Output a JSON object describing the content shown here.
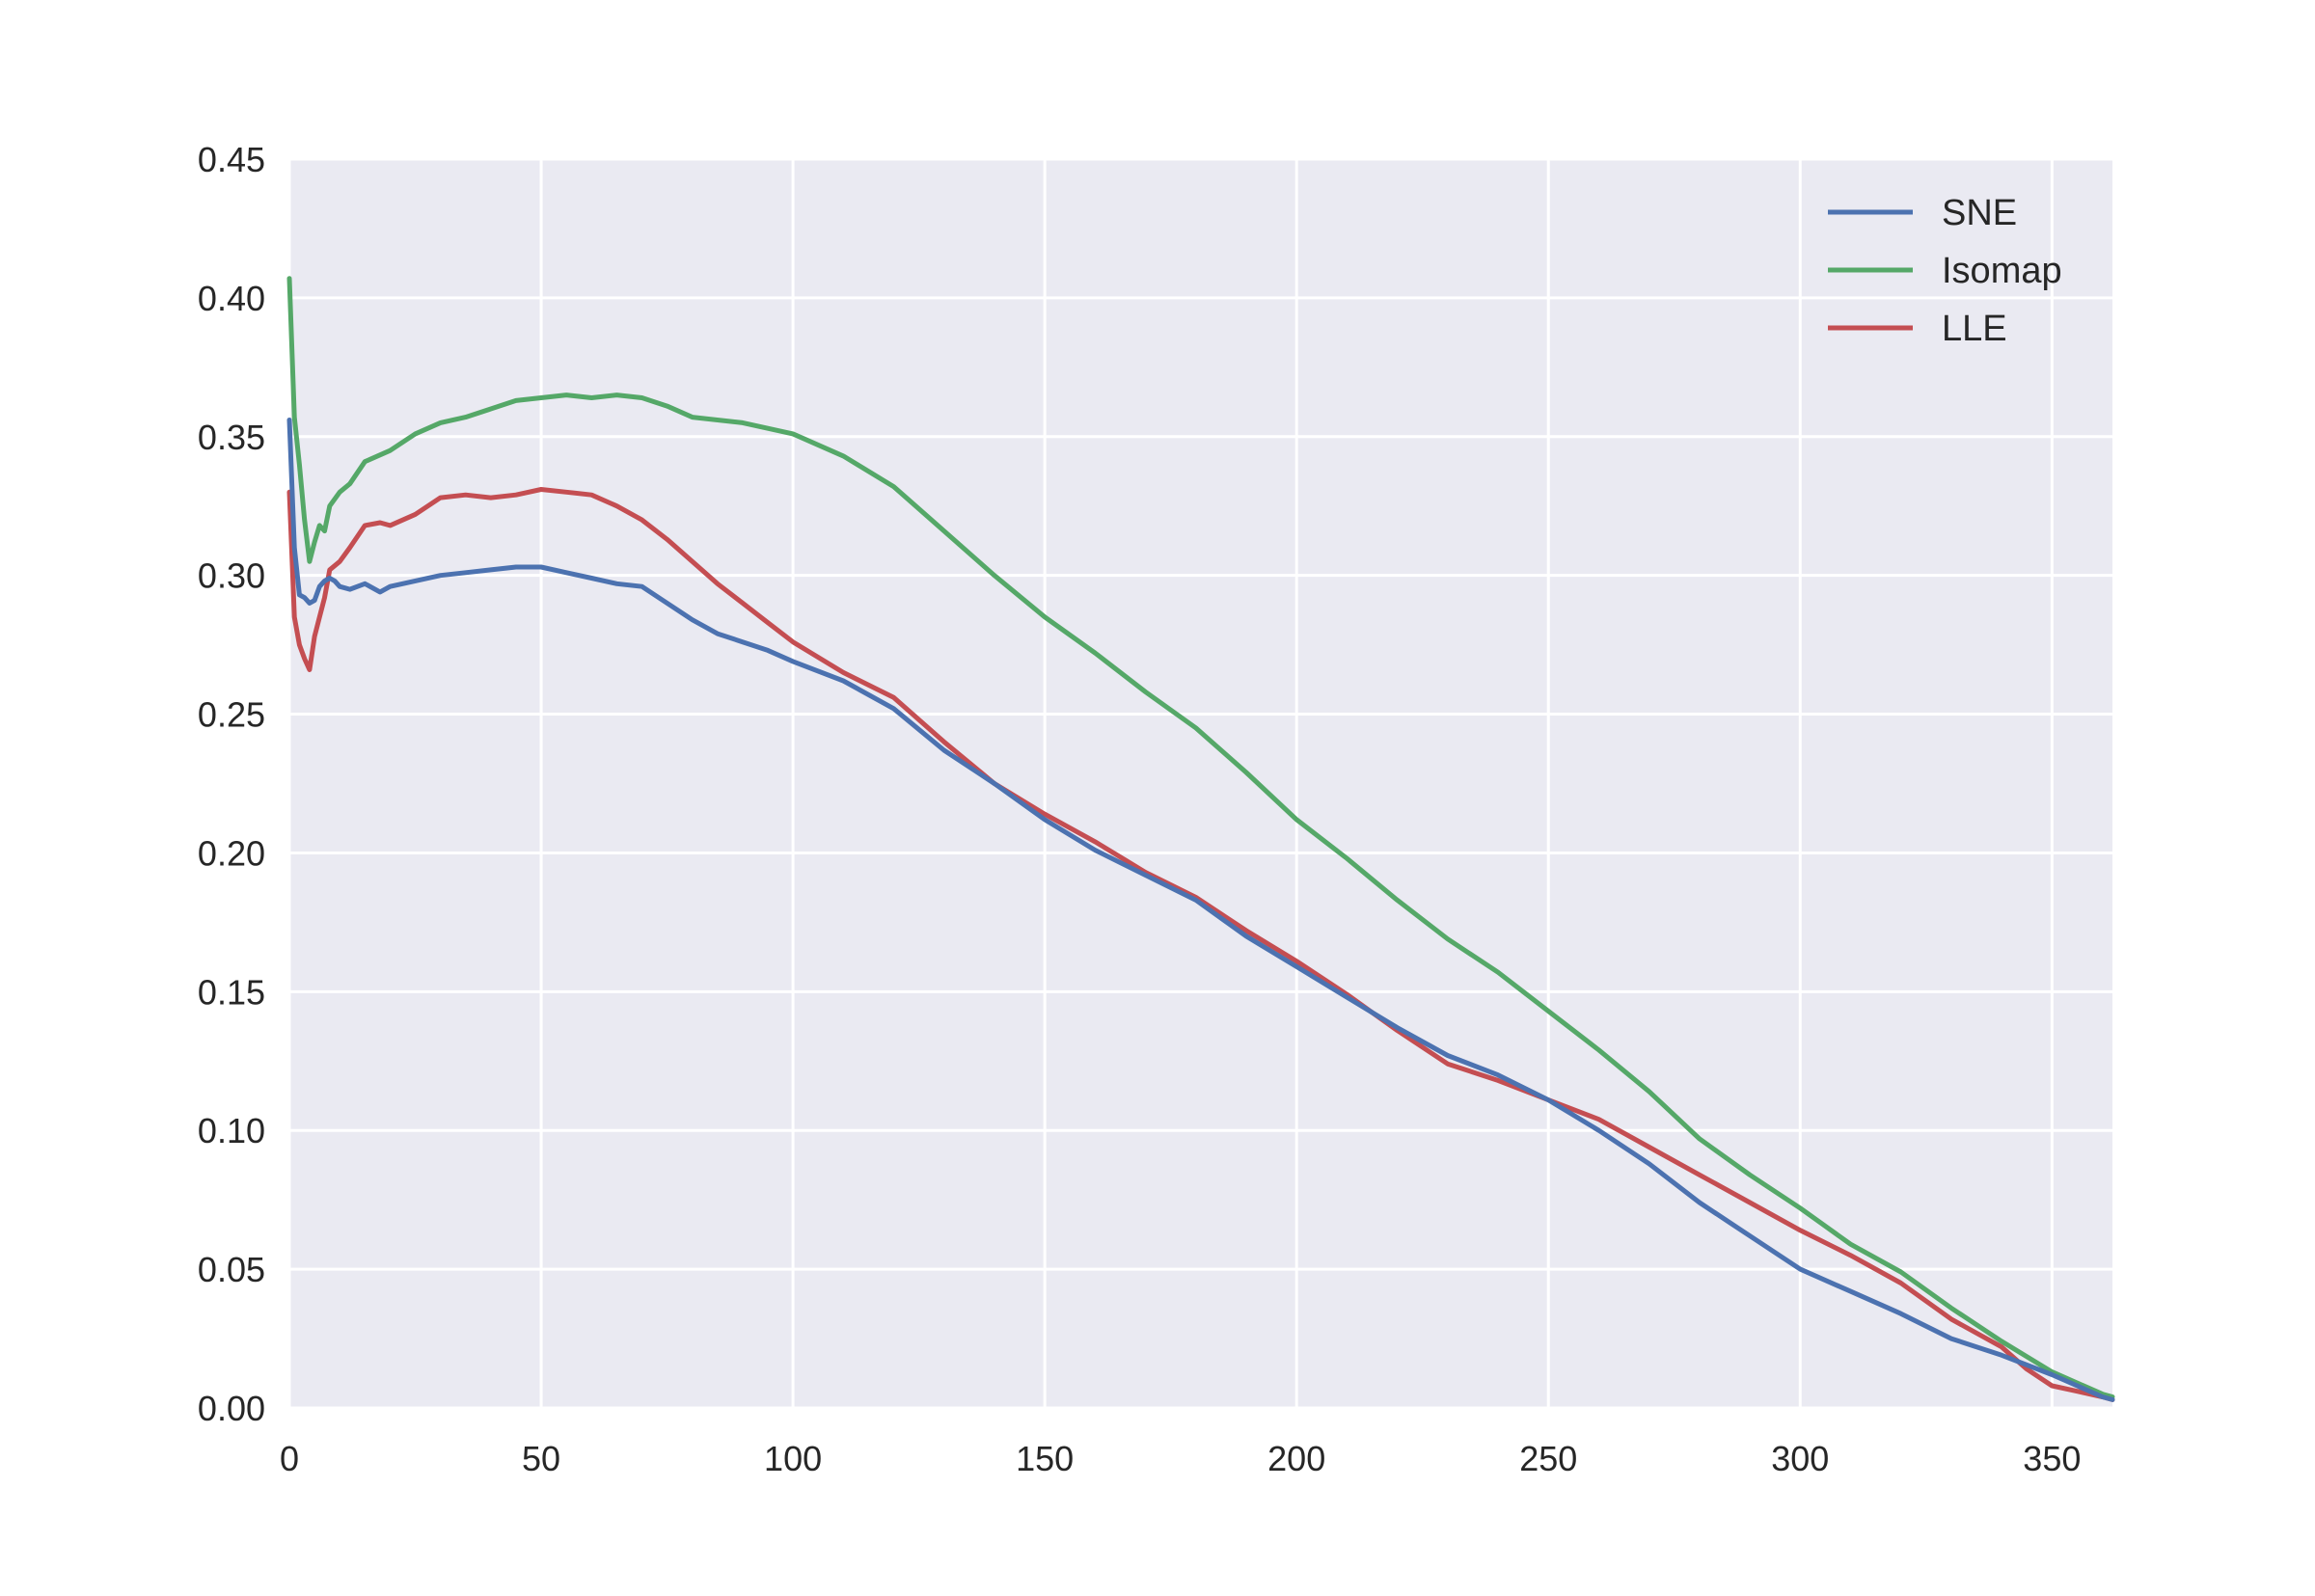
{
  "chart_data": {
    "type": "line",
    "title": "",
    "xlabel": "",
    "ylabel": "",
    "xlim": [
      0,
      362
    ],
    "ylim": [
      0.0,
      0.45
    ],
    "grid": true,
    "legend_position": "top-right",
    "x_ticks": [
      0,
      50,
      100,
      150,
      200,
      250,
      300,
      350
    ],
    "x_tick_labels": [
      "0",
      "50",
      "100",
      "150",
      "200",
      "250",
      "300",
      "350"
    ],
    "y_ticks": [
      0.0,
      0.05,
      0.1,
      0.15,
      0.2,
      0.25,
      0.3,
      0.35,
      0.4,
      0.45
    ],
    "y_tick_labels": [
      "0.00",
      "0.05",
      "0.10",
      "0.15",
      "0.20",
      "0.25",
      "0.30",
      "0.35",
      "0.40",
      "0.45"
    ],
    "colors": {
      "plot_background": "#eaeaf2",
      "grid": "#ffffff"
    },
    "series": [
      {
        "name": "SNE",
        "color": "#4c72b0",
        "x": [
          0,
          1,
          2,
          3,
          4,
          5,
          6,
          7,
          8,
          9,
          10,
          12,
          15,
          18,
          20,
          25,
          30,
          35,
          40,
          45,
          50,
          55,
          60,
          65,
          70,
          75,
          80,
          85,
          90,
          95,
          100,
          110,
          120,
          130,
          140,
          150,
          160,
          170,
          180,
          190,
          200,
          210,
          220,
          230,
          240,
          250,
          260,
          270,
          280,
          290,
          300,
          310,
          320,
          330,
          340,
          350,
          355,
          360,
          362
        ],
        "values": [
          0.356,
          0.31,
          0.293,
          0.292,
          0.29,
          0.291,
          0.296,
          0.298,
          0.299,
          0.298,
          0.296,
          0.295,
          0.297,
          0.294,
          0.296,
          0.298,
          0.3,
          0.301,
          0.302,
          0.303,
          0.303,
          0.301,
          0.299,
          0.297,
          0.296,
          0.29,
          0.284,
          0.279,
          0.276,
          0.273,
          0.269,
          0.262,
          0.252,
          0.237,
          0.225,
          0.212,
          0.201,
          0.192,
          0.183,
          0.17,
          0.159,
          0.148,
          0.137,
          0.127,
          0.12,
          0.111,
          0.1,
          0.088,
          0.074,
          0.062,
          0.05,
          0.042,
          0.034,
          0.025,
          0.019,
          0.012,
          0.008,
          0.004,
          0.003
        ]
      },
      {
        "name": "Isomap",
        "color": "#55a868",
        "x": [
          0,
          1,
          2,
          3,
          4,
          5,
          6,
          7,
          8,
          10,
          12,
          15,
          20,
          25,
          30,
          35,
          40,
          45,
          50,
          55,
          60,
          65,
          70,
          75,
          80,
          90,
          100,
          110,
          120,
          130,
          140,
          150,
          160,
          170,
          180,
          190,
          200,
          210,
          220,
          230,
          240,
          250,
          260,
          270,
          280,
          290,
          300,
          310,
          320,
          330,
          340,
          350,
          360,
          362
        ],
        "values": [
          0.407,
          0.357,
          0.34,
          0.32,
          0.305,
          0.312,
          0.318,
          0.316,
          0.325,
          0.33,
          0.333,
          0.341,
          0.345,
          0.351,
          0.355,
          0.357,
          0.36,
          0.363,
          0.364,
          0.365,
          0.364,
          0.365,
          0.364,
          0.361,
          0.357,
          0.355,
          0.351,
          0.343,
          0.332,
          0.316,
          0.3,
          0.285,
          0.272,
          0.258,
          0.245,
          0.229,
          0.212,
          0.198,
          0.183,
          0.169,
          0.157,
          0.143,
          0.129,
          0.114,
          0.097,
          0.084,
          0.072,
          0.059,
          0.049,
          0.036,
          0.024,
          0.013,
          0.005,
          0.004
        ]
      },
      {
        "name": "LLE",
        "color": "#c44e52",
        "x": [
          0,
          1,
          2,
          3,
          4,
          5,
          6,
          7,
          8,
          10,
          12,
          15,
          18,
          20,
          25,
          30,
          35,
          40,
          45,
          50,
          55,
          60,
          65,
          70,
          75,
          80,
          85,
          90,
          95,
          100,
          110,
          120,
          130,
          140,
          150,
          160,
          170,
          180,
          190,
          200,
          210,
          220,
          230,
          240,
          250,
          260,
          270,
          280,
          290,
          300,
          310,
          320,
          330,
          340,
          345,
          350,
          355,
          360,
          362
        ],
        "values": [
          0.33,
          0.285,
          0.275,
          0.27,
          0.266,
          0.278,
          0.285,
          0.292,
          0.302,
          0.305,
          0.31,
          0.318,
          0.319,
          0.318,
          0.322,
          0.328,
          0.329,
          0.328,
          0.329,
          0.331,
          0.33,
          0.329,
          0.325,
          0.32,
          0.313,
          0.305,
          0.297,
          0.29,
          0.283,
          0.276,
          0.265,
          0.256,
          0.24,
          0.225,
          0.214,
          0.204,
          0.193,
          0.184,
          0.172,
          0.161,
          0.149,
          0.136,
          0.124,
          0.118,
          0.111,
          0.104,
          0.094,
          0.084,
          0.074,
          0.064,
          0.055,
          0.045,
          0.032,
          0.022,
          0.014,
          0.008,
          0.006,
          0.004,
          0.003
        ]
      }
    ]
  }
}
